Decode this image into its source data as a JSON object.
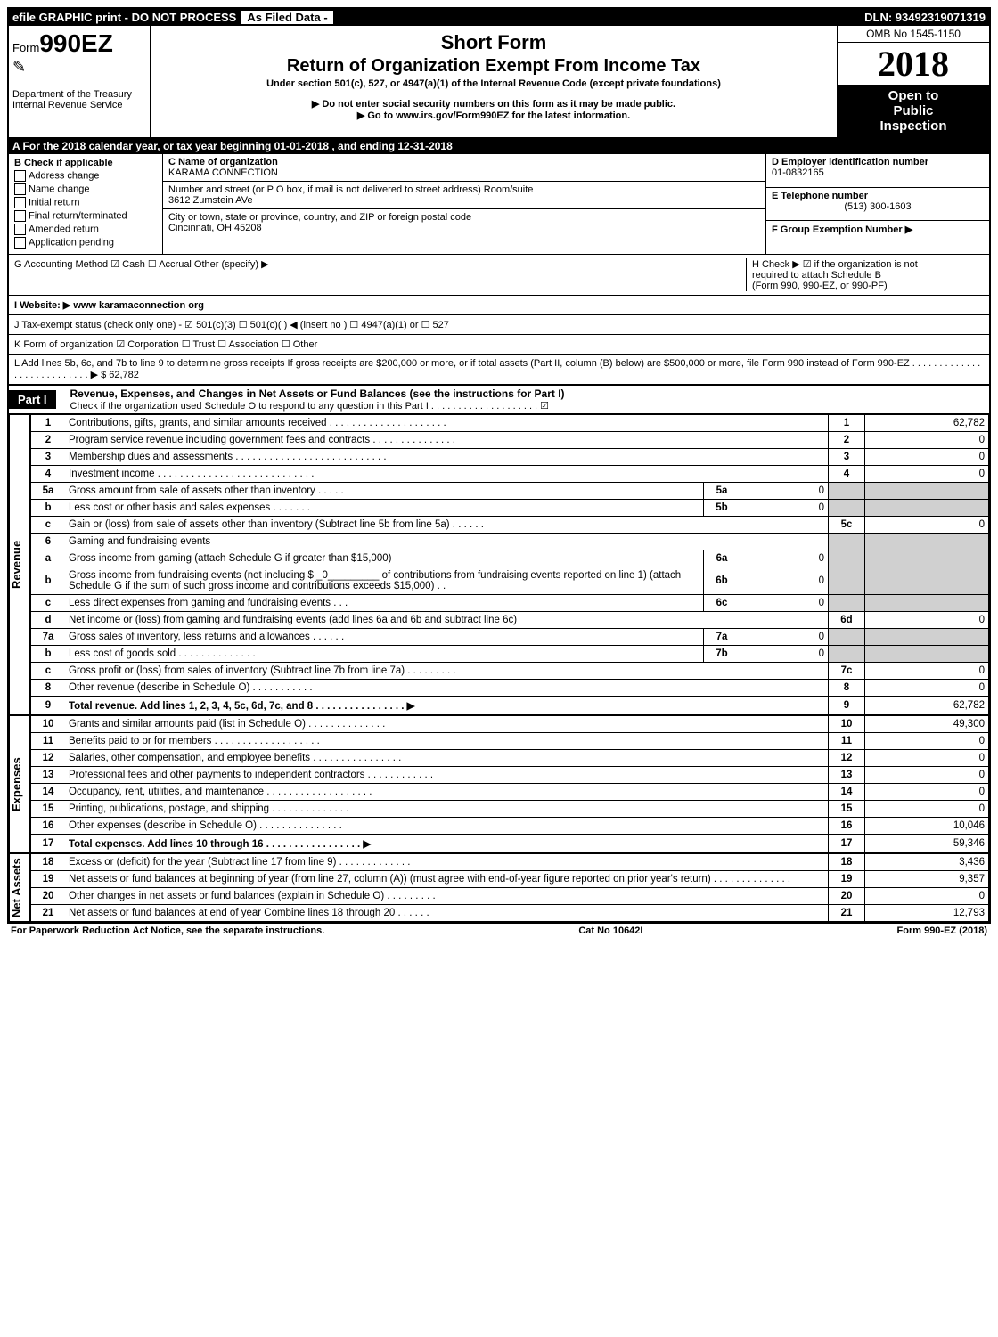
{
  "top_bar": {
    "efile": "efile GRAPHIC print - DO NOT PROCESS",
    "filed": "As Filed Data -",
    "dln": "DLN: 93492319071319"
  },
  "header": {
    "form_prefix": "Form",
    "form_number": "990EZ",
    "dept": "Department of the Treasury",
    "irs": "Internal Revenue Service",
    "short_form": "Short Form",
    "title": "Return of Organization Exempt From Income Tax",
    "subtitle": "Under section 501(c), 527, or 4947(a)(1) of the Internal Revenue Code (except private foundations)",
    "warn1": "▶ Do not enter social security numbers on this form as it may be made public.",
    "warn2": "▶ Go to www.irs.gov/Form990EZ for the latest information.",
    "omb": "OMB No 1545-1150",
    "year": "2018",
    "inspection1": "Open to",
    "inspection2": "Public",
    "inspection3": "Inspection"
  },
  "row_a": "A  For the 2018 calendar year, or tax year beginning 01-01-2018         , and ending 12-31-2018",
  "section_b": {
    "title": "B  Check if applicable",
    "items": [
      "Address change",
      "Name change",
      "Initial return",
      "Final return/terminated",
      "Amended return",
      "Application pending"
    ]
  },
  "section_c": {
    "label": "C Name of organization",
    "name": "KARAMA CONNECTION",
    "addr_label": "Number and street (or P O box, if mail is not delivered to street address)    Room/suite",
    "addr": "3612 Zumstein AVe",
    "city_label": "City or town, state or province, country, and ZIP or foreign postal code",
    "city": "Cincinnati, OH  45208"
  },
  "section_d": {
    "label": "D Employer identification number",
    "value": "01-0832165"
  },
  "section_e": {
    "label": "E Telephone number",
    "value": "(513) 300-1603"
  },
  "section_f": {
    "label": "F Group Exemption Number   ▶"
  },
  "section_g": "G Accounting Method     ☑ Cash   ☐ Accrual   Other (specify) ▶",
  "section_h": {
    "line1": "H   Check ▶   ☑  if the organization is not",
    "line2": "required to attach Schedule B",
    "line3": "(Form 990, 990-EZ, or 990-PF)"
  },
  "section_i": "I Website: ▶ www karamaconnection org",
  "section_j": "J Tax-exempt status (check only one) - ☑ 501(c)(3)  ☐ 501(c)(  ) ◀ (insert no ) ☐ 4947(a)(1) or ☐ 527",
  "section_k": "K Form of organization     ☑ Corporation  ☐ Trust  ☐ Association  ☐ Other",
  "section_l": "L Add lines 5b, 6c, and 7b to line 9 to determine gross receipts  If gross receipts are $200,000 or more, or if total assets (Part II, column (B) below) are $500,000 or more, file Form 990 instead of Form 990-EZ  . . . . . . . . . . . . . . . . . . . . . . . . . . .  ▶ $ 62,782",
  "part1": {
    "label": "Part I",
    "title": "Revenue, Expenses, and Changes in Net Assets or Fund Balances (see the instructions for Part I)",
    "check": "Check if the organization used Schedule O to respond to any question in this Part I . . . . . . . . . . . . . . . . . . . .  ☑"
  },
  "vertical_labels": {
    "revenue": "Revenue",
    "expenses": "Expenses",
    "netassets": "Net Assets"
  },
  "lines": [
    {
      "n": "1",
      "desc": "Contributions, gifts, grants, and similar amounts received . . . . . . . . . . . . . . . . . . . . .",
      "box": "1",
      "val": "62,782"
    },
    {
      "n": "2",
      "desc": "Program service revenue including government fees and contracts . . . . . . . . . . . . . . .",
      "box": "2",
      "val": "0"
    },
    {
      "n": "3",
      "desc": "Membership dues and assessments . . . . . . . . . . . . . . . . . . . . . . . . . . .",
      "box": "3",
      "val": "0"
    },
    {
      "n": "4",
      "desc": "Investment income . . . . . . . . . . . . . . . . . . . . . . . . . . . .",
      "box": "4",
      "val": "0"
    },
    {
      "n": "5a",
      "desc": "Gross amount from sale of assets other than inventory . . . . .",
      "mid_box": "5a",
      "mid_val": "0",
      "shade": true
    },
    {
      "n": "b",
      "desc": "Less  cost or other basis and sales expenses . . . . . . .",
      "mid_box": "5b",
      "mid_val": "0",
      "shade": true
    },
    {
      "n": "c",
      "desc": "Gain or (loss) from sale of assets other than inventory (Subtract line 5b from line 5a) . . . . . .",
      "box": "5c",
      "val": "0"
    },
    {
      "n": "6",
      "desc": "Gaming and fundraising events",
      "shade": true,
      "nobox": true
    },
    {
      "n": "a",
      "desc": "Gross income from gaming (attach Schedule G if greater than $15,000)",
      "mid_box": "6a",
      "mid_val": "0",
      "shade": true
    },
    {
      "n": "b",
      "desc": "Gross income from fundraising events (not including $ _0_________ of contributions from fundraising events reported on line 1) (attach Schedule G if the sum of such gross income and contributions exceeds $15,000)      . .",
      "mid_box": "6b",
      "mid_val": "0",
      "shade": true
    },
    {
      "n": "c",
      "desc": "Less  direct expenses from gaming and fundraising events          . . .",
      "mid_box": "6c",
      "mid_val": "0",
      "shade": true
    },
    {
      "n": "d",
      "desc": "Net income or (loss) from gaming and fundraising events (add lines 6a and 6b and subtract line 6c)",
      "box": "6d",
      "val": "0"
    },
    {
      "n": "7a",
      "desc": "Gross sales of inventory, less returns and allowances . . . . . .",
      "mid_box": "7a",
      "mid_val": "0",
      "shade": true
    },
    {
      "n": "b",
      "desc": "Less  cost of goods sold               . . . . . . . . . . . . . .",
      "mid_box": "7b",
      "mid_val": "0",
      "shade": true
    },
    {
      "n": "c",
      "desc": "Gross profit or (loss) from sales of inventory (Subtract line 7b from line 7a) . . . . . . . . .",
      "box": "7c",
      "val": "0"
    },
    {
      "n": "8",
      "desc": "Other revenue (describe in Schedule O)                           . . . . . . . . . . .",
      "box": "8",
      "val": "0"
    },
    {
      "n": "9",
      "desc": "Total revenue. Add lines 1, 2, 3, 4, 5c, 6d, 7c, and 8  . . . . . . . . . . . . . . . .  ▶",
      "box": "9",
      "val": "62,782",
      "bold": true
    }
  ],
  "expense_lines": [
    {
      "n": "10",
      "desc": "Grants and similar amounts paid (list in Schedule O)             . . . . . . . . . . . . . .",
      "box": "10",
      "val": "49,300"
    },
    {
      "n": "11",
      "desc": "Benefits paid to or for members                   . . . . . . . . . . . . . . . . . . .",
      "box": "11",
      "val": "0"
    },
    {
      "n": "12",
      "desc": "Salaries, other compensation, and employee benefits . . . . . . . . . . . . . . . .",
      "box": "12",
      "val": "0"
    },
    {
      "n": "13",
      "desc": "Professional fees and other payments to independent contractors . . . . . . . . . . . .",
      "box": "13",
      "val": "0"
    },
    {
      "n": "14",
      "desc": "Occupancy, rent, utilities, and maintenance . . . . . . . . . . . . . . . . . . .",
      "box": "14",
      "val": "0"
    },
    {
      "n": "15",
      "desc": "Printing, publications, postage, and shipping                   . . . . . . . . . . . . . .",
      "box": "15",
      "val": "0"
    },
    {
      "n": "16",
      "desc": "Other expenses (describe in Schedule O)                     . . . . . . . . . . . . . . .",
      "box": "16",
      "val": "10,046"
    },
    {
      "n": "17",
      "desc": "Total expenses. Add lines 10 through 16         . . . . . . . . . . . . . . . . .  ▶",
      "box": "17",
      "val": "59,346",
      "bold": true
    }
  ],
  "net_lines": [
    {
      "n": "18",
      "desc": "Excess or (deficit) for the year (Subtract line 17 from line 9)       . . . . . . . . . . . . .",
      "box": "18",
      "val": "3,436"
    },
    {
      "n": "19",
      "desc": "Net assets or fund balances at beginning of year (from line 27, column (A)) (must agree with end-of-year figure reported on prior year's return)                   . . . . . . . . . . . . . .",
      "box": "19",
      "val": "9,357"
    },
    {
      "n": "20",
      "desc": "Other changes in net assets or fund balances (explain in Schedule O)       . . . . . . . . .",
      "box": "20",
      "val": "0"
    },
    {
      "n": "21",
      "desc": "Net assets or fund balances at end of year  Combine lines 18 through 20             . . . . . .",
      "box": "21",
      "val": "12,793"
    }
  ],
  "footer": {
    "left": "For Paperwork Reduction Act Notice, see the separate instructions.",
    "mid": "Cat No 10642I",
    "right": "Form 990-EZ (2018)"
  }
}
